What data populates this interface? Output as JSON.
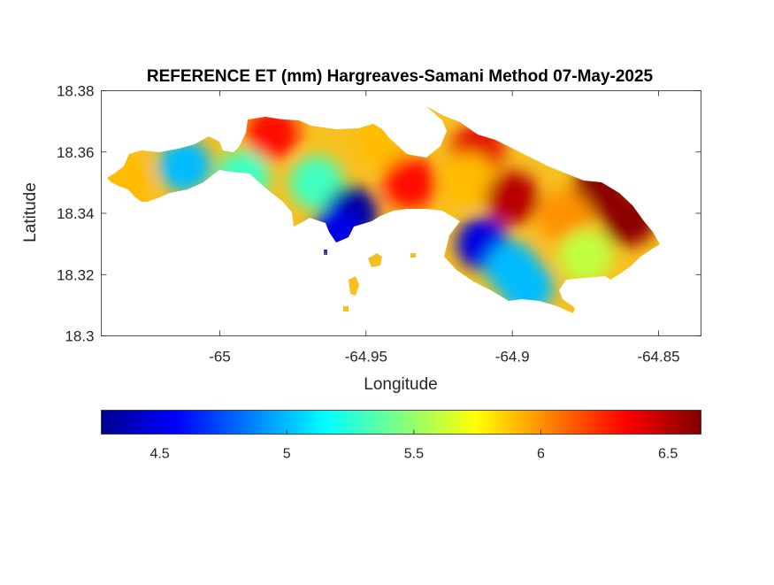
{
  "chart_data": {
    "type": "heatmap",
    "title": "REFERENCE ET (mm) Hargreaves-Samani Method  07-May-2025",
    "xlabel": "Longitude",
    "ylabel": "Latitude",
    "xlim": [
      -65.0405,
      -64.8355
    ],
    "ylim": [
      18.3,
      18.38
    ],
    "xticks": [
      -65,
      -64.95,
      -64.9,
      -64.85
    ],
    "xtick_labels": [
      "-65",
      "-64.95",
      "-64.9",
      "-64.85"
    ],
    "yticks": [
      18.3,
      18.32,
      18.34,
      18.36,
      18.38
    ],
    "ytick_labels": [
      "18.3",
      "18.32",
      "18.34",
      "18.36",
      "18.38"
    ],
    "colormap": "jet",
    "clim": [
      4.27,
      6.63
    ],
    "colorbar_ticks": [
      4.5,
      5,
      5.5,
      6,
      6.5
    ],
    "colorbar_tick_labels": [
      "4.5",
      "5",
      "5.5",
      "6",
      "6.5"
    ],
    "colorbar_position": "bottom",
    "grid": false,
    "hotspots": [
      {
        "lon": -65.012,
        "lat": 18.3555,
        "value": 5.0
      },
      {
        "lon": -65.032,
        "lat": 18.351,
        "value": 5.9
      },
      {
        "lon": -64.982,
        "lat": 18.366,
        "value": 6.3
      },
      {
        "lon": -64.992,
        "lat": 18.352,
        "value": 5.3
      },
      {
        "lon": -64.967,
        "lat": 18.35,
        "value": 5.3
      },
      {
        "lon": -64.955,
        "lat": 18.34,
        "value": 4.35
      },
      {
        "lon": -64.96,
        "lat": 18.333,
        "value": 4.5
      },
      {
        "lon": -64.944,
        "lat": 18.364,
        "value": 5.9
      },
      {
        "lon": -64.935,
        "lat": 18.35,
        "value": 6.3
      },
      {
        "lon": -64.912,
        "lat": 18.36,
        "value": 6.4
      },
      {
        "lon": -64.915,
        "lat": 18.351,
        "value": 5.9
      },
      {
        "lon": -64.9,
        "lat": 18.345,
        "value": 6.5
      },
      {
        "lon": -64.87,
        "lat": 18.348,
        "value": 6.6
      },
      {
        "lon": -64.86,
        "lat": 18.338,
        "value": 6.6
      },
      {
        "lon": -64.882,
        "lat": 18.339,
        "value": 6.0
      },
      {
        "lon": -64.91,
        "lat": 18.33,
        "value": 4.5
      },
      {
        "lon": -64.9,
        "lat": 18.322,
        "value": 5.0
      },
      {
        "lon": -64.875,
        "lat": 18.326,
        "value": 5.6
      },
      {
        "lon": -64.895,
        "lat": 18.316,
        "value": 5.0
      }
    ]
  }
}
